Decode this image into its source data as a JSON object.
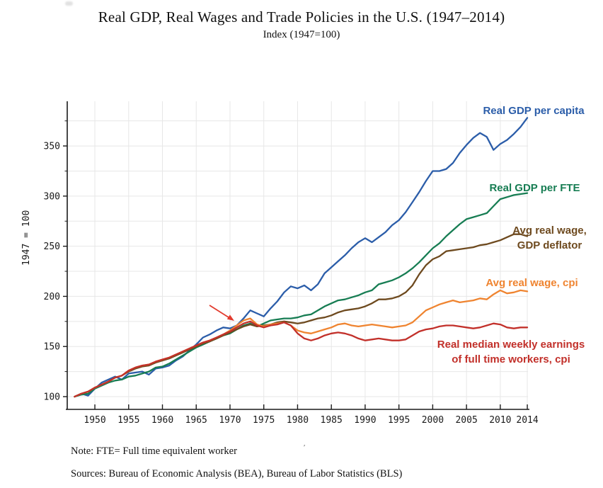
{
  "header": {
    "title": "Real GDP, Real Wages and Trade Policies in the U.S. (1947–2014)",
    "subtitle": "Index (1947=100)"
  },
  "y_axis": {
    "title": "1947 = 100",
    "tick_labels": [
      100,
      150,
      200,
      250,
      300,
      350
    ],
    "minor_ticks": [
      125,
      175,
      225,
      275,
      325,
      375
    ]
  },
  "x_axis": {
    "tick_labels": [
      1950,
      1955,
      1960,
      1965,
      1970,
      1975,
      1980,
      1985,
      1990,
      1995,
      2000,
      2005,
      2010,
      2014
    ]
  },
  "grid": {
    "h_values": [
      100,
      125,
      150,
      175,
      200,
      225,
      250,
      275,
      300,
      325,
      350,
      375
    ],
    "v_years": [
      1950,
      1955,
      1960,
      1965,
      1970,
      1975,
      1980,
      1985,
      1990,
      1995,
      2000,
      2005,
      2010,
      2014
    ],
    "color": "#e7e7e7"
  },
  "annotation_arrow": {
    "color": "#e23b2e"
  },
  "notes": {
    "note": "Note: FTE= Full time equivalent worker",
    "note_mark": "ʹ",
    "sources": "Sources: Bureau of Economic Analysis (BEA), Bureau of Labor Statistics (BLS)"
  },
  "chart_data": {
    "type": "line",
    "title": "Real GDP, Real Wages and Trade Policies in the U.S. (1947–2014)",
    "subtitle": "Index (1947=100)",
    "xlabel": "",
    "ylabel": "1947 = 100",
    "xlim": [
      1947,
      2014
    ],
    "ylim": [
      95,
      390
    ],
    "grid": true,
    "legend_position": "inline-right",
    "x": [
      1947,
      1948,
      1949,
      1950,
      1951,
      1952,
      1953,
      1954,
      1955,
      1956,
      1957,
      1958,
      1959,
      1960,
      1961,
      1962,
      1963,
      1964,
      1965,
      1966,
      1967,
      1968,
      1969,
      1970,
      1971,
      1972,
      1973,
      1974,
      1975,
      1976,
      1977,
      1978,
      1979,
      1980,
      1981,
      1982,
      1983,
      1984,
      1985,
      1986,
      1987,
      1988,
      1989,
      1990,
      1991,
      1992,
      1993,
      1994,
      1995,
      1996,
      1997,
      1998,
      1999,
      2000,
      2001,
      2002,
      2003,
      2004,
      2005,
      2006,
      2007,
      2008,
      2009,
      2010,
      2011,
      2012,
      2013,
      2014
    ],
    "series": [
      {
        "name": "Real GDP per capita",
        "label_lines": [
          "Real GDP per capita"
        ],
        "color": "#2b5da9",
        "values": [
          100,
          103,
          101,
          108,
          114,
          117,
          120,
          117,
          123,
          124,
          125,
          122,
          128,
          129,
          131,
          136,
          140,
          146,
          152,
          159,
          162,
          166,
          169,
          168,
          171,
          178,
          186,
          183,
          180,
          188,
          195,
          204,
          210,
          208,
          211,
          206,
          212,
          223,
          229,
          235,
          241,
          248,
          254,
          258,
          254,
          259,
          264,
          271,
          276,
          284,
          294,
          304,
          315,
          325,
          325,
          327,
          333,
          343,
          351,
          358,
          363,
          359,
          346,
          352,
          356,
          362,
          369,
          378
        ]
      },
      {
        "name": "Real GDP per FTE",
        "label_lines": [
          "Real GDP per FTE"
        ],
        "color": "#177d53",
        "values": [
          100,
          102,
          103,
          108,
          111,
          114,
          116,
          117,
          120,
          121,
          123,
          125,
          129,
          130,
          133,
          137,
          141,
          145,
          149,
          152,
          155,
          158,
          161,
          163,
          167,
          171,
          173,
          170,
          173,
          176,
          177,
          178,
          178,
          179,
          181,
          182,
          186,
          190,
          193,
          196,
          197,
          199,
          201,
          204,
          206,
          212,
          214,
          216,
          219,
          223,
          228,
          234,
          241,
          248,
          253,
          260,
          266,
          272,
          277,
          279,
          281,
          283,
          290,
          297,
          299,
          301,
          302,
          303
        ]
      },
      {
        "name": "Avg real wage, GDP deflator",
        "label_lines": [
          "Avg real wage,",
          "GDP deflator"
        ],
        "color": "#6e4a1f",
        "values": [
          100,
          103,
          105,
          109,
          112,
          115,
          119,
          121,
          125,
          128,
          130,
          131,
          134,
          136,
          138,
          141,
          144,
          147,
          150,
          153,
          155,
          158,
          161,
          164,
          167,
          170,
          172,
          170,
          171,
          172,
          174,
          175,
          174,
          173,
          174,
          176,
          178,
          179,
          181,
          184,
          186,
          187,
          188,
          190,
          193,
          197,
          197,
          198,
          200,
          204,
          211,
          222,
          231,
          237,
          240,
          245,
          246,
          247,
          248,
          249,
          251,
          252,
          254,
          256,
          259,
          262,
          262,
          260
        ]
      },
      {
        "name": "Avg real wage, cpi",
        "label_lines": [
          "Avg real wage, cpi"
        ],
        "color": "#ef8430",
        "values": [
          100,
          103,
          105,
          109,
          112,
          115,
          119,
          121,
          126,
          129,
          131,
          132,
          135,
          137,
          139,
          142,
          145,
          148,
          151,
          154,
          156,
          159,
          162,
          166,
          171,
          176,
          178,
          172,
          170,
          172,
          173,
          174,
          171,
          166,
          164,
          163,
          165,
          167,
          169,
          172,
          173,
          171,
          170,
          171,
          172,
          171,
          170,
          169,
          170,
          171,
          174,
          180,
          186,
          189,
          192,
          194,
          196,
          194,
          195,
          196,
          198,
          197,
          202,
          206,
          203,
          204,
          206,
          205
        ]
      },
      {
        "name": "Real median weekly earnings of full time workers, cpi",
        "label_lines": [
          "Real median weekly earnings",
          "of full time workers, cpi"
        ],
        "color": "#c2302a",
        "values": [
          100,
          103,
          105,
          109,
          112,
          115,
          119,
          121,
          126,
          129,
          131,
          132,
          135,
          137,
          139,
          142,
          145,
          148,
          151,
          154,
          156,
          159,
          162,
          165,
          169,
          173,
          175,
          171,
          169,
          171,
          172,
          174,
          171,
          163,
          158,
          156,
          158,
          161,
          163,
          164,
          163,
          161,
          158,
          156,
          157,
          158,
          157,
          156,
          156,
          157,
          161,
          165,
          167,
          168,
          170,
          171,
          171,
          170,
          169,
          168,
          169,
          171,
          173,
          172,
          169,
          168,
          169,
          169
        ]
      }
    ]
  }
}
